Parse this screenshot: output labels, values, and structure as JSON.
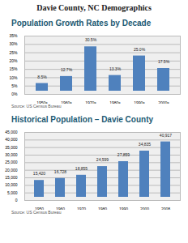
{
  "title": "Davie County, NC Demographics",
  "chart_data": [
    {
      "type": "bar",
      "title": "Population Growth Rates by Decade",
      "categories": [
        "1950s",
        "1960s",
        "1970s",
        "1980s",
        "1990s",
        "2000s"
      ],
      "values": [
        8.5,
        12.7,
        30.5,
        13.3,
        25.0,
        17.5
      ],
      "value_labels": [
        "8.5%",
        "12.7%",
        "30.5%",
        "13.3%",
        "25.0%",
        "17.5%"
      ],
      "data_labels": true,
      "color": "#4f81bd",
      "ylim": [
        0,
        35
      ],
      "yticks": [
        {
          "value": 0,
          "label": "0%"
        },
        {
          "value": 5,
          "label": "5%"
        },
        {
          "value": 10,
          "label": "10%"
        },
        {
          "value": 15,
          "label": "15%"
        },
        {
          "value": 20,
          "label": "20%"
        },
        {
          "value": 25,
          "label": "25%"
        },
        {
          "value": 30,
          "label": "30%"
        },
        {
          "value": 35,
          "label": "35%"
        }
      ],
      "grid": true,
      "annotations": [
        "Source: US Census Bureau"
      ]
    },
    {
      "type": "bar",
      "title": "Historical Population – Davie County",
      "categories": [
        "1950",
        "1960",
        "1970",
        "1980",
        "1990",
        "2000",
        "2008"
      ],
      "values": [
        15420,
        16728,
        18855,
        24599,
        27859,
        34835,
        40917
      ],
      "value_labels": [
        "15,420",
        "16,728",
        "18,855",
        "24,599",
        "27,859",
        "34,835",
        "40,917"
      ],
      "data_labels": true,
      "color": "#4f81bd",
      "ylim": [
        0,
        45000
      ],
      "yticks": [
        0,
        {
          "value": 5000,
          "label": "5,000"
        },
        {
          "value": 10000,
          "label": "10,000"
        },
        {
          "value": 15000,
          "label": "15,000"
        },
        {
          "value": 20000,
          "label": "20,000"
        },
        {
          "value": 25000,
          "label": "25,000"
        },
        {
          "value": 30000,
          "label": "30,000"
        },
        {
          "value": 35000,
          "label": "35,000"
        },
        {
          "value": 40000,
          "label": "40,000"
        },
        {
          "value": 45000,
          "label": "45,000"
        }
      ],
      "grid": true,
      "annotations": [
        "Source: US Census Bureau"
      ]
    }
  ]
}
